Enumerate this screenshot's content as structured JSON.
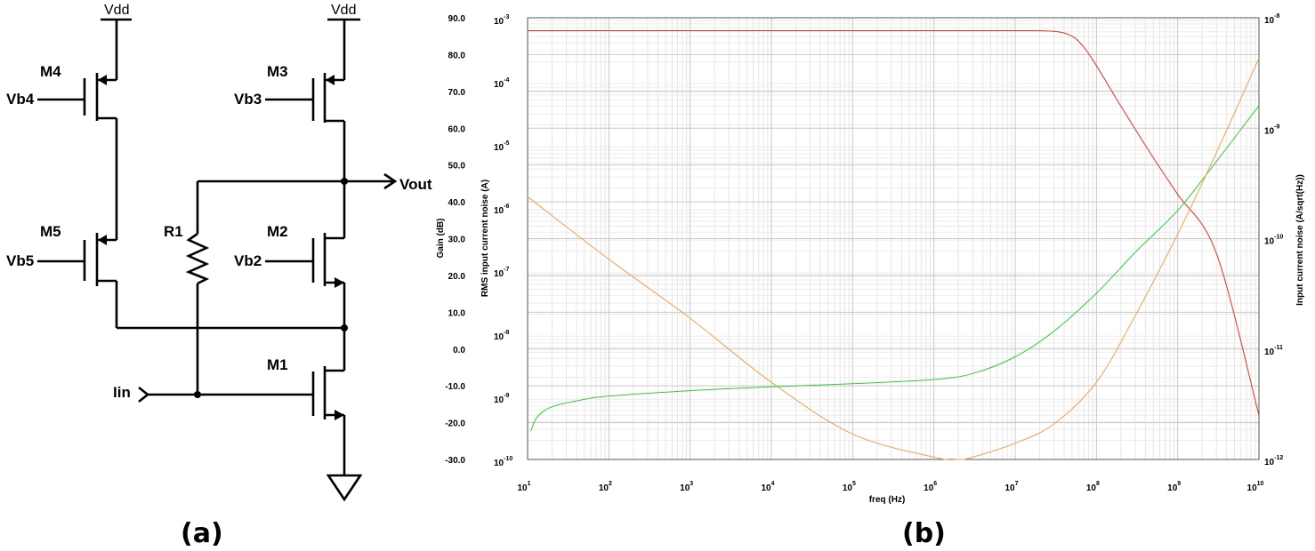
{
  "captions": {
    "a": "(a)",
    "b": "(b)"
  },
  "circuit": {
    "supply_left": "Vdd",
    "supply_right": "Vdd",
    "m4": "M4",
    "m3": "M3",
    "m5": "M5",
    "m2": "M2",
    "m1": "M1",
    "r1": "R1",
    "vb4": "Vb4",
    "vb3": "Vb3",
    "vb5": "Vb5",
    "vb2": "Vb2",
    "vout": "Vout",
    "iin": "Iin"
  },
  "chart_data": {
    "type": "line",
    "xlabel": "freq (Hz)",
    "xscale": "log",
    "xlim": [
      10,
      10000000000
    ],
    "x_ticks": [
      [
        "10",
        "1"
      ],
      [
        "10",
        "2"
      ],
      [
        "10",
        "3"
      ],
      [
        "10",
        "4"
      ],
      [
        "10",
        "5"
      ],
      [
        "10",
        "6"
      ],
      [
        "10",
        "7"
      ],
      [
        "10",
        "8"
      ],
      [
        "10",
        "9"
      ],
      [
        "10",
        "10"
      ]
    ],
    "y_axes": {
      "gain": {
        "label": "Gain (dB)",
        "ylim": [
          -30,
          90
        ],
        "ticks": [
          "90.0",
          "80.0",
          "70.0",
          "60.0",
          "50.0",
          "40.0",
          "30.0",
          "20.0",
          "10.0",
          "0.0",
          "-10.0",
          "-20.0",
          "-30.0"
        ]
      },
      "rms_noise": {
        "label": "RMS input current noise (A)",
        "scale": "log",
        "ylim": [
          1e-10,
          0.001
        ],
        "ticks": [
          [
            "10",
            "-3"
          ],
          [
            "10",
            "-4"
          ],
          [
            "10",
            "-5"
          ],
          [
            "10",
            "-6"
          ],
          [
            "10",
            "-7"
          ],
          [
            "10",
            "-8"
          ],
          [
            "10",
            "-9"
          ],
          [
            "10",
            "-10"
          ]
        ]
      },
      "noise_density": {
        "label": "Input current noise (A/sqrt(Hz))",
        "scale": "log",
        "ylim": [
          1e-12,
          1e-08
        ],
        "ticks": [
          [
            "10",
            "-8"
          ],
          [
            "10",
            "-9"
          ],
          [
            "10",
            "-10"
          ],
          [
            "10",
            "-11"
          ],
          [
            "10",
            "-12"
          ]
        ]
      }
    },
    "grid": true,
    "series": [
      {
        "axis": "gain",
        "color": "#e0302a",
        "x": [
          10,
          100,
          1000,
          10000,
          100000,
          1000000,
          10000000,
          30000000,
          50000000,
          70000000,
          100000000,
          200000000,
          500000000,
          1000000000,
          3000000000,
          10000000000
        ],
        "y": [
          86.5,
          86.5,
          86.5,
          86.5,
          86.5,
          86.5,
          86.5,
          86.3,
          85,
          82,
          77,
          66,
          52,
          42,
          26,
          -18
        ]
      },
      {
        "axis": "noise_density",
        "color": "#33cc33",
        "x": [
          11,
          13,
          20,
          50,
          100,
          1000,
          10000,
          100000,
          1000000,
          3000000,
          10000000,
          30000000,
          100000000,
          300000000,
          1000000000,
          3000000000,
          10000000000
        ],
        "y": [
          1.8e-12,
          2.4e-12,
          3e-12,
          3.5e-12,
          3.75e-12,
          4.2e-12,
          4.55e-12,
          4.85e-12,
          5.3e-12,
          6e-12,
          8.5e-12,
          1.45e-11,
          3.2e-11,
          7.5e-11,
          1.8e-10,
          5e-10,
          1.6e-09
        ]
      },
      {
        "axis": "noise_density",
        "color": "#f0a050",
        "x": [
          10,
          100,
          1000,
          10000,
          100000,
          1000000,
          2000000,
          3000000,
          10000000,
          30000000,
          100000000,
          300000000,
          1000000000,
          3000000000,
          10000000000
        ],
        "y": [
          2.4e-10,
          6.5e-11,
          1.9e-11,
          5e-12,
          1.7e-12,
          1.05e-12,
          1e-12,
          1.05e-12,
          1.4e-12,
          2.1e-12,
          5e-12,
          2e-11,
          1.1e-10,
          6e-10,
          4.3e-09
        ]
      }
    ]
  }
}
